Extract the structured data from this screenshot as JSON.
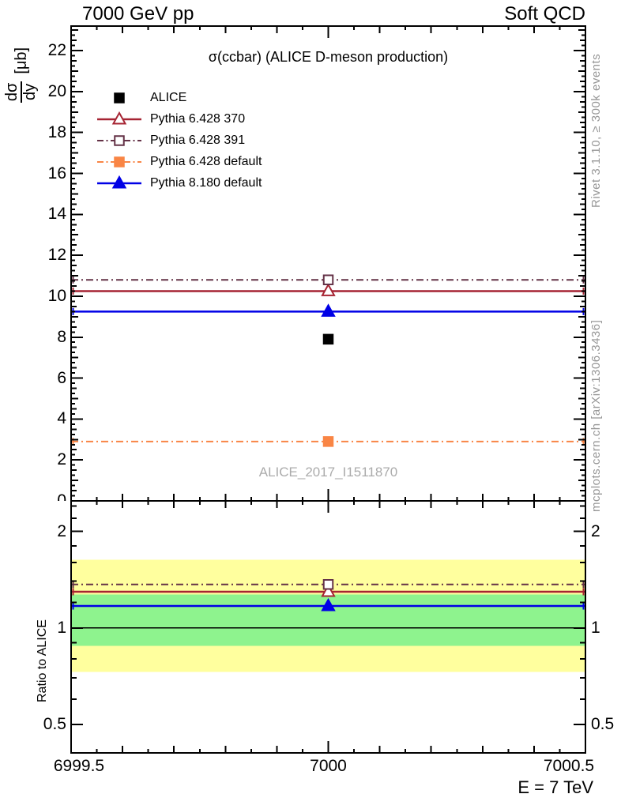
{
  "header": {
    "left": "7000 GeV pp",
    "right": "Soft QCD"
  },
  "side_notes": {
    "rivet": "Rivet 3.1.10, ≥ 300k events",
    "mcplots": "mcplots.cern.ch [arXiv:1306.3436]"
  },
  "watermark": "ALICE_2017_I1511870",
  "axis": {
    "x_label": "E = 7 TeV",
    "y_numerator": "dσ",
    "y_denominator": "dy",
    "y_unit": "[μb]",
    "ratio_label": "Ratio to ALICE"
  },
  "chart_data": {
    "type": "line",
    "title": "σ(ccbar) (ALICE D-meson production)",
    "x_value": 7000,
    "x_axis": {
      "range": [
        6999.5,
        7000.5
      ],
      "major_ticks": [
        6999.5,
        7000,
        7000.5
      ],
      "tick_labels": [
        "6999.5",
        "7000",
        "7000.5"
      ],
      "medium_step": 0.1,
      "minor_step": 0.05
    },
    "main_panel": {
      "ylim": [
        0,
        23.2
      ],
      "grid": false,
      "y_tick_labels": [
        {
          "v": 0,
          "label": "0"
        },
        {
          "v": 2,
          "label": "2"
        },
        {
          "v": 4,
          "label": "4"
        },
        {
          "v": 6,
          "label": "6"
        },
        {
          "v": 8,
          "label": "8"
        },
        {
          "v": 10,
          "label": "10"
        },
        {
          "v": 12,
          "label": "12"
        },
        {
          "v": 14,
          "label": "14"
        },
        {
          "v": 16,
          "label": "16"
        },
        {
          "v": 18,
          "label": "18"
        },
        {
          "v": 20,
          "label": "20"
        },
        {
          "v": 22,
          "label": "22"
        }
      ]
    },
    "ratio_panel": {
      "yscale": "log",
      "ylim": [
        0.408,
        2.49
      ],
      "reference": 1,
      "y_ticks": [
        {
          "v": 0.5,
          "label": "0.5"
        },
        {
          "v": 1,
          "label": "1"
        },
        {
          "v": 2,
          "label": "2"
        }
      ],
      "y_minor_ticks": [
        0.6,
        0.7,
        0.8,
        0.9,
        1.2,
        1.4,
        1.6,
        1.8,
        2.2,
        2.4
      ],
      "bands": [
        {
          "name": "total-uncertainty",
          "color": "#ffff9e",
          "range": [
            0.73,
            1.63
          ]
        },
        {
          "name": "stat-uncertainty",
          "color": "#8ef38e",
          "range": [
            0.88,
            1.27
          ]
        }
      ]
    },
    "series": [
      {
        "label": "ALICE",
        "role": "data",
        "color": "#000000",
        "marker": "square",
        "filled": true,
        "line": "none",
        "value": 7.9,
        "ratio": 1.0
      },
      {
        "label": "Pythia 6.428 370",
        "role": "mc",
        "color": "#a62433",
        "marker": "triangle",
        "filled": false,
        "line": "solid",
        "value": 10.25,
        "ratio": 1.297
      },
      {
        "label": "Pythia 6.428 391",
        "role": "mc",
        "color": "#643247",
        "marker": "square",
        "filled": false,
        "line": "dashdot",
        "value": 10.8,
        "ratio": 1.367
      },
      {
        "label": "Pythia 6.428 default",
        "role": "mc",
        "color": "#f98545",
        "marker": "square",
        "filled": true,
        "line": "dashdot",
        "value": 2.9,
        "ratio": 0.367
      },
      {
        "label": "Pythia 8.180 default",
        "role": "mc",
        "color": "#0000e6",
        "marker": "triangle",
        "filled": true,
        "line": "solid",
        "value": 9.25,
        "ratio": 1.171
      }
    ]
  }
}
